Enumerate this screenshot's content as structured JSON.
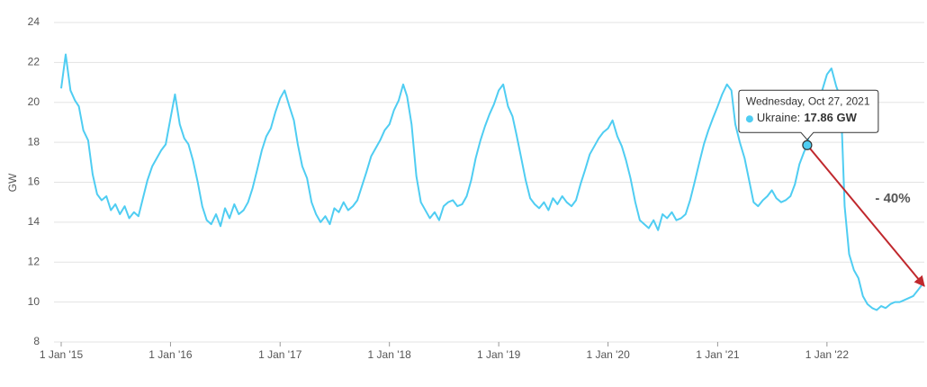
{
  "chart_data": {
    "type": "line",
    "y_label": "GW",
    "x": [
      "2015-01-01",
      "2015-01-16",
      "2015-02-01",
      "2015-02-16",
      "2015-03-01",
      "2015-03-16",
      "2015-04-01",
      "2015-04-16",
      "2015-05-01",
      "2015-05-16",
      "2015-06-01",
      "2015-06-16",
      "2015-07-01",
      "2015-07-16",
      "2015-08-01",
      "2015-08-16",
      "2015-09-01",
      "2015-09-16",
      "2015-10-01",
      "2015-10-16",
      "2015-11-01",
      "2015-11-16",
      "2015-12-01",
      "2015-12-16",
      "2016-01-01",
      "2016-01-16",
      "2016-02-01",
      "2016-02-16",
      "2016-03-01",
      "2016-03-16",
      "2016-04-01",
      "2016-04-16",
      "2016-05-01",
      "2016-05-16",
      "2016-06-01",
      "2016-06-16",
      "2016-07-01",
      "2016-07-16",
      "2016-08-01",
      "2016-08-16",
      "2016-09-01",
      "2016-09-16",
      "2016-10-01",
      "2016-10-16",
      "2016-11-01",
      "2016-11-16",
      "2016-12-01",
      "2016-12-16",
      "2017-01-01",
      "2017-01-16",
      "2017-02-01",
      "2017-02-16",
      "2017-03-01",
      "2017-03-16",
      "2017-04-01",
      "2017-04-16",
      "2017-05-01",
      "2017-05-16",
      "2017-06-01",
      "2017-06-16",
      "2017-07-01",
      "2017-07-16",
      "2017-08-01",
      "2017-08-16",
      "2017-09-01",
      "2017-09-16",
      "2017-10-01",
      "2017-10-16",
      "2017-11-01",
      "2017-11-16",
      "2017-12-01",
      "2017-12-16",
      "2018-01-01",
      "2018-01-16",
      "2018-02-01",
      "2018-02-16",
      "2018-03-01",
      "2018-03-16",
      "2018-04-01",
      "2018-04-16",
      "2018-05-01",
      "2018-05-16",
      "2018-06-01",
      "2018-06-16",
      "2018-07-01",
      "2018-07-16",
      "2018-08-01",
      "2018-08-16",
      "2018-09-01",
      "2018-09-16",
      "2018-10-01",
      "2018-10-16",
      "2018-11-01",
      "2018-11-16",
      "2018-12-01",
      "2018-12-16",
      "2019-01-01",
      "2019-01-16",
      "2019-02-01",
      "2019-02-16",
      "2019-03-01",
      "2019-03-16",
      "2019-04-01",
      "2019-04-16",
      "2019-05-01",
      "2019-05-16",
      "2019-06-01",
      "2019-06-16",
      "2019-07-01",
      "2019-07-16",
      "2019-08-01",
      "2019-08-16",
      "2019-09-01",
      "2019-09-16",
      "2019-10-01",
      "2019-10-16",
      "2019-11-01",
      "2019-11-16",
      "2019-12-01",
      "2019-12-16",
      "2020-01-01",
      "2020-01-16",
      "2020-02-01",
      "2020-02-16",
      "2020-03-01",
      "2020-03-16",
      "2020-04-01",
      "2020-04-16",
      "2020-05-01",
      "2020-05-16",
      "2020-06-01",
      "2020-06-16",
      "2020-07-01",
      "2020-07-16",
      "2020-08-01",
      "2020-08-16",
      "2020-09-01",
      "2020-09-16",
      "2020-10-01",
      "2020-10-16",
      "2020-11-01",
      "2020-11-16",
      "2020-12-01",
      "2020-12-16",
      "2021-01-01",
      "2021-01-16",
      "2021-02-01",
      "2021-02-16",
      "2021-03-01",
      "2021-03-16",
      "2021-04-01",
      "2021-04-16",
      "2021-05-01",
      "2021-05-16",
      "2021-06-01",
      "2021-06-16",
      "2021-07-01",
      "2021-07-16",
      "2021-08-01",
      "2021-08-16",
      "2021-09-01",
      "2021-09-16",
      "2021-10-01",
      "2021-10-16",
      "2021-10-27",
      "2021-11-01",
      "2021-11-16",
      "2021-12-01",
      "2021-12-16",
      "2022-01-01",
      "2022-01-16",
      "2022-02-01",
      "2022-02-16",
      "2022-03-01",
      "2022-03-16",
      "2022-04-01",
      "2022-04-16",
      "2022-05-01",
      "2022-05-16",
      "2022-06-01",
      "2022-06-16",
      "2022-07-01",
      "2022-07-16",
      "2022-08-01",
      "2022-08-16",
      "2022-09-01",
      "2022-09-16",
      "2022-10-01",
      "2022-10-16",
      "2022-11-01",
      "2022-11-16"
    ],
    "series": [
      {
        "color": "#4fcdf2",
        "values": [
          20.7,
          22.4,
          20.6,
          20.1,
          19.8,
          18.6,
          18.1,
          16.4,
          15.4,
          15.1,
          15.3,
          14.6,
          14.9,
          14.4,
          14.8,
          14.2,
          14.5,
          14.3,
          15.2,
          16.1,
          16.8,
          17.2,
          17.6,
          17.9,
          19.2,
          20.4,
          18.9,
          18.2,
          17.9,
          17.1,
          16.0,
          14.8,
          14.1,
          13.9,
          14.4,
          13.8,
          14.7,
          14.2,
          14.9,
          14.4,
          14.6,
          15.0,
          15.7,
          16.6,
          17.6,
          18.3,
          18.7,
          19.5,
          20.2,
          20.6,
          19.8,
          19.1,
          17.9,
          16.8,
          16.2,
          15.0,
          14.4,
          14.0,
          14.3,
          13.9,
          14.7,
          14.5,
          15.0,
          14.6,
          14.8,
          15.1,
          15.8,
          16.5,
          17.3,
          17.7,
          18.1,
          18.6,
          18.9,
          19.6,
          20.1,
          20.9,
          20.3,
          18.9,
          16.3,
          15.0,
          14.6,
          14.2,
          14.5,
          14.1,
          14.8,
          15.0,
          15.1,
          14.8,
          14.9,
          15.3,
          16.1,
          17.2,
          18.1,
          18.8,
          19.4,
          19.9,
          20.6,
          20.9,
          19.8,
          19.3,
          18.4,
          17.3,
          16.1,
          15.2,
          14.9,
          14.7,
          15.0,
          14.6,
          15.2,
          14.9,
          15.3,
          15.0,
          14.8,
          15.1,
          15.9,
          16.6,
          17.4,
          17.8,
          18.2,
          18.5,
          18.7,
          19.1,
          18.3,
          17.8,
          17.1,
          16.2,
          15.0,
          14.1,
          13.9,
          13.7,
          14.1,
          13.6,
          14.4,
          14.2,
          14.5,
          14.1,
          14.2,
          14.4,
          15.1,
          16.0,
          17.0,
          17.9,
          18.6,
          19.2,
          19.8,
          20.4,
          20.9,
          20.6,
          18.9,
          18.0,
          17.2,
          16.1,
          15.0,
          14.8,
          15.1,
          15.3,
          15.6,
          15.2,
          15.0,
          15.1,
          15.3,
          15.9,
          16.9,
          17.5,
          17.86,
          18.3,
          18.9,
          19.8,
          20.6,
          21.4,
          21.7,
          20.8,
          20.2,
          14.8,
          12.4,
          11.6,
          11.2,
          10.3,
          9.9,
          9.7,
          9.6,
          9.8,
          9.7,
          9.9,
          10.0,
          10.0,
          10.1,
          10.2,
          10.3,
          10.6,
          10.9
        ]
      }
    ],
    "xlim": [
      "2014-12-08",
      "2022-11-22"
    ],
    "xticks": [
      {
        "value": "2015-01-01",
        "label": "1 Jan '15"
      },
      {
        "value": "2016-01-01",
        "label": "1 Jan '16"
      },
      {
        "value": "2017-01-01",
        "label": "1 Jan '17"
      },
      {
        "value": "2018-01-01",
        "label": "1 Jan '18"
      },
      {
        "value": "2019-01-01",
        "label": "1 Jan '19"
      },
      {
        "value": "2020-01-01",
        "label": "1 Jan '20"
      },
      {
        "value": "2021-01-01",
        "label": "1 Jan '21"
      },
      {
        "value": "2022-01-01",
        "label": "1 Jan '22"
      }
    ],
    "ylim": [
      8,
      24
    ],
    "yticks": [
      8,
      10,
      12,
      14,
      16,
      18,
      20,
      22,
      24
    ],
    "grid": true,
    "tooltip": {
      "x": "2021-10-27",
      "date_label": "Wednesday, Oct 27, 2021",
      "series_label": "Ukraine:",
      "value_label": "17.86 GW"
    },
    "annotation": {
      "text": "- 40%",
      "color": "#c0282d",
      "to_x": "2022-11-22",
      "to_y": 10.8
    }
  }
}
